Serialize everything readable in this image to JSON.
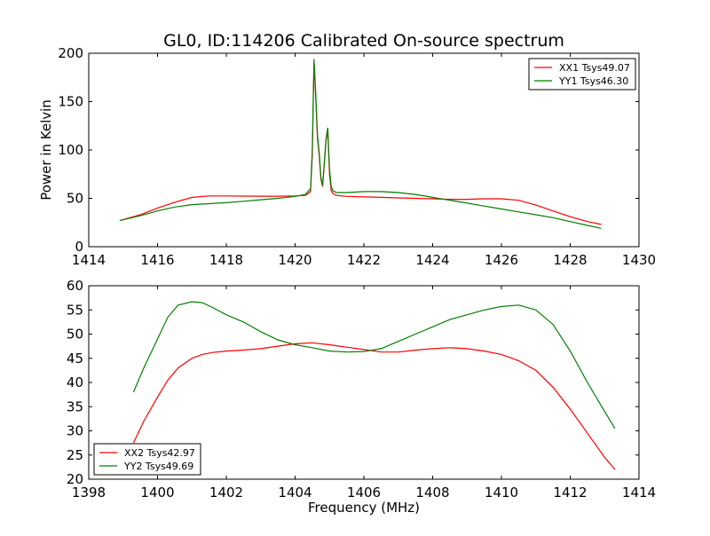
{
  "chart_data": [
    {
      "type": "line",
      "title": "GL0, ID:114206 Calibrated On-source spectrum",
      "xlabel": "",
      "ylabel": "Power in Kelvin",
      "xlim": [
        1414,
        1430
      ],
      "ylim": [
        0,
        200
      ],
      "xticks": [
        1414,
        1416,
        1418,
        1420,
        1422,
        1424,
        1426,
        1428,
        1430
      ],
      "yticks": [
        0,
        50,
        100,
        150,
        200
      ],
      "legend_position": "top-right",
      "grid": false,
      "series": [
        {
          "name": "XX1 Tsys49.07",
          "color": "#ff0000",
          "x": [
            1414.9,
            1415.5,
            1416.0,
            1416.5,
            1417.0,
            1417.5,
            1418.0,
            1418.5,
            1419.0,
            1419.5,
            1420.0,
            1420.3,
            1420.45,
            1420.5,
            1420.55,
            1420.6,
            1420.65,
            1420.7,
            1420.75,
            1420.8,
            1420.9,
            1420.95,
            1421.0,
            1421.05,
            1421.1,
            1421.2,
            1421.5,
            1422.0,
            1422.5,
            1423.0,
            1423.5,
            1424.0,
            1424.5,
            1425.0,
            1425.5,
            1426.0,
            1426.5,
            1427.0,
            1427.5,
            1428.0,
            1428.5,
            1428.9
          ],
          "y": [
            27,
            33,
            40,
            46,
            51,
            52.5,
            52.5,
            52.3,
            52.2,
            52.2,
            52.5,
            53,
            57,
            95,
            190,
            155,
            112,
            95,
            70,
            62,
            110,
            120,
            75,
            58,
            55,
            53,
            52,
            51.5,
            51,
            50.5,
            50,
            49.5,
            49,
            49,
            49.5,
            49.5,
            48,
            43,
            37,
            31,
            26,
            23
          ]
        },
        {
          "name": "YY1 Tsys46.30",
          "color": "#008000",
          "x": [
            1414.9,
            1415.5,
            1416.0,
            1416.5,
            1417.0,
            1417.5,
            1418.0,
            1418.5,
            1419.0,
            1419.5,
            1420.0,
            1420.3,
            1420.45,
            1420.5,
            1420.55,
            1420.6,
            1420.65,
            1420.7,
            1420.75,
            1420.8,
            1420.9,
            1420.95,
            1421.0,
            1421.05,
            1421.1,
            1421.2,
            1421.5,
            1422.0,
            1422.5,
            1423.0,
            1423.5,
            1424.0,
            1424.5,
            1425.0,
            1425.5,
            1426.0,
            1426.5,
            1427.0,
            1427.5,
            1428.0,
            1428.5,
            1428.9
          ],
          "y": [
            27,
            32,
            37,
            41,
            43.5,
            44.5,
            45.5,
            47,
            48.5,
            50,
            52,
            54,
            60,
            100,
            194,
            160,
            115,
            98,
            72,
            63,
            112,
            123,
            80,
            62,
            58,
            56,
            56,
            57,
            57,
            56,
            54,
            51,
            48,
            45,
            42,
            39,
            36,
            33,
            30,
            26,
            22,
            19
          ]
        }
      ]
    },
    {
      "type": "line",
      "title": "",
      "xlabel": "Frequency (MHz)",
      "ylabel": "",
      "xlim": [
        1398,
        1414
      ],
      "ylim": [
        20,
        60
      ],
      "xticks": [
        1398,
        1400,
        1402,
        1404,
        1406,
        1408,
        1410,
        1412,
        1414
      ],
      "yticks": [
        20,
        25,
        30,
        35,
        40,
        45,
        50,
        55,
        60
      ],
      "legend_position": "bottom-left",
      "grid": false,
      "series": [
        {
          "name": "XX2 Tsys42.97",
          "color": "#ff0000",
          "x": [
            1399.3,
            1399.6,
            1400.0,
            1400.3,
            1400.6,
            1401.0,
            1401.3,
            1401.6,
            1402.0,
            1402.5,
            1403.0,
            1403.5,
            1404.0,
            1404.5,
            1405.0,
            1405.5,
            1406.0,
            1406.5,
            1407.0,
            1407.5,
            1408.0,
            1408.5,
            1409.0,
            1409.5,
            1410.0,
            1410.5,
            1411.0,
            1411.5,
            1412.0,
            1412.5,
            1413.0,
            1413.3
          ],
          "y": [
            27.5,
            32,
            37,
            40.5,
            43,
            45,
            45.8,
            46.2,
            46.5,
            46.7,
            47,
            47.5,
            48,
            48.2,
            47.8,
            47.3,
            46.8,
            46.3,
            46.3,
            46.7,
            47,
            47.2,
            47,
            46.5,
            45.8,
            44.5,
            42.5,
            39,
            34.5,
            29.5,
            24.5,
            22
          ]
        },
        {
          "name": "YY2 Tsys49.69",
          "color": "#008000",
          "x": [
            1399.3,
            1399.6,
            1400.0,
            1400.3,
            1400.6,
            1401.0,
            1401.3,
            1401.6,
            1402.0,
            1402.5,
            1403.0,
            1403.5,
            1404.0,
            1404.5,
            1405.0,
            1405.5,
            1406.0,
            1406.5,
            1407.0,
            1407.5,
            1408.0,
            1408.5,
            1409.0,
            1409.5,
            1410.0,
            1410.5,
            1411.0,
            1411.5,
            1412.0,
            1412.5,
            1413.0,
            1413.3
          ],
          "y": [
            38,
            43,
            49,
            53.5,
            56,
            56.7,
            56.5,
            55.5,
            54,
            52.5,
            50.5,
            48.8,
            47.8,
            47.2,
            46.5,
            46.3,
            46.4,
            47,
            48.5,
            50,
            51.5,
            53,
            54,
            55,
            55.7,
            56,
            55,
            52,
            46.5,
            40,
            34,
            30.5
          ]
        }
      ]
    }
  ]
}
